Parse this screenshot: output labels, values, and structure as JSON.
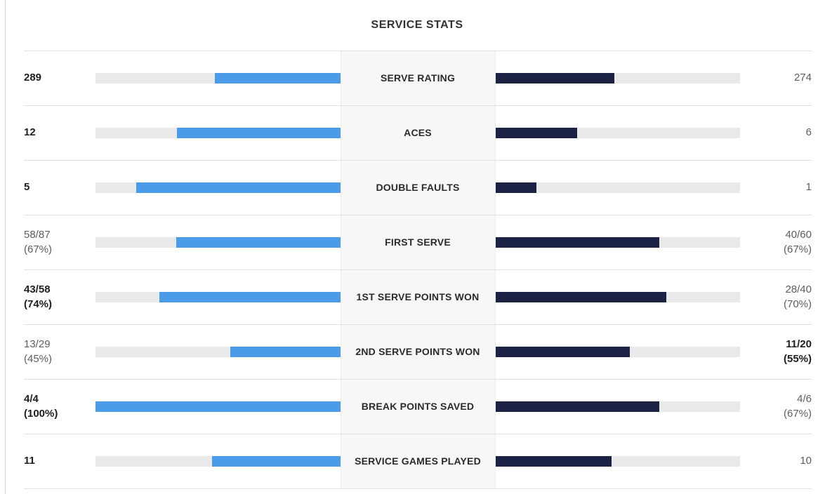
{
  "title": "SERVICE STATS",
  "colors": {
    "player1_bar": "#4a9ce8",
    "player2_bar": "#1a2143",
    "bar_track": "#e9e9e9",
    "label_background": "#f7f7f7",
    "separator": "#e0e0e0"
  },
  "rows": [
    {
      "label": "SERVE RATING",
      "left": {
        "value": "289",
        "bold": true,
        "fill_pct": 51.3
      },
      "right": {
        "value": "274",
        "bold": false,
        "fill_pct": 48.7
      }
    },
    {
      "label": "ACES",
      "left": {
        "value": "12",
        "bold": true,
        "fill_pct": 66.7
      },
      "right": {
        "value": "6",
        "bold": false,
        "fill_pct": 33.3
      }
    },
    {
      "label": "DOUBLE FAULTS",
      "left": {
        "value": "5",
        "bold": true,
        "fill_pct": 83.3
      },
      "right": {
        "value": "1",
        "bold": false,
        "fill_pct": 16.7
      }
    },
    {
      "label": "FIRST SERVE",
      "left": {
        "value": "58/87\n(67%)",
        "bold": false,
        "fill_pct": 67
      },
      "right": {
        "value": "40/60\n(67%)",
        "bold": false,
        "fill_pct": 67
      }
    },
    {
      "label": "1ST SERVE POINTS WON",
      "left": {
        "value": "43/58\n(74%)",
        "bold": true,
        "fill_pct": 74
      },
      "right": {
        "value": "28/40\n(70%)",
        "bold": false,
        "fill_pct": 70
      }
    },
    {
      "label": "2ND SERVE POINTS WON",
      "left": {
        "value": "13/29\n(45%)",
        "bold": false,
        "fill_pct": 45
      },
      "right": {
        "value": "11/20\n(55%)",
        "bold": true,
        "fill_pct": 55
      }
    },
    {
      "label": "BREAK POINTS SAVED",
      "left": {
        "value": "4/4\n(100%)",
        "bold": true,
        "fill_pct": 100
      },
      "right": {
        "value": "4/6\n(67%)",
        "bold": false,
        "fill_pct": 67
      }
    },
    {
      "label": "SERVICE GAMES PLAYED",
      "left": {
        "value": "11",
        "bold": true,
        "fill_pct": 52.4
      },
      "right": {
        "value": "10",
        "bold": false,
        "fill_pct": 47.6
      }
    }
  ],
  "chart_data": {
    "type": "bar",
    "orientation": "horizontal-paired",
    "title": "SERVICE STATS",
    "categories": [
      "SERVE RATING",
      "ACES",
      "DOUBLE FAULTS",
      "FIRST SERVE",
      "1ST SERVE POINTS WON",
      "2ND SERVE POINTS WON",
      "BREAK POINTS SAVED",
      "SERVICE GAMES PLAYED"
    ],
    "series": [
      {
        "name": "player-left",
        "color": "#4a9ce8",
        "value_labels": [
          "289",
          "12",
          "5",
          "58/87 (67%)",
          "43/58 (74%)",
          "13/29 (45%)",
          "4/4 (100%)",
          "11"
        ],
        "bar_fill_percent": [
          51.3,
          66.7,
          83.3,
          67,
          74,
          45,
          100,
          52.4
        ]
      },
      {
        "name": "player-right",
        "color": "#1a2143",
        "value_labels": [
          "274",
          "6",
          "1",
          "40/60 (67%)",
          "28/40 (70%)",
          "11/20 (55%)",
          "4/6 (67%)",
          "10"
        ],
        "bar_fill_percent": [
          48.7,
          33.3,
          16.7,
          67,
          70,
          55,
          67,
          47.6
        ]
      }
    ],
    "notes": "Bars grow from the center label column outward is false: left bars anchor at center and extend left-to-center filled portion adjacent to center; fill percent is share of track width."
  }
}
